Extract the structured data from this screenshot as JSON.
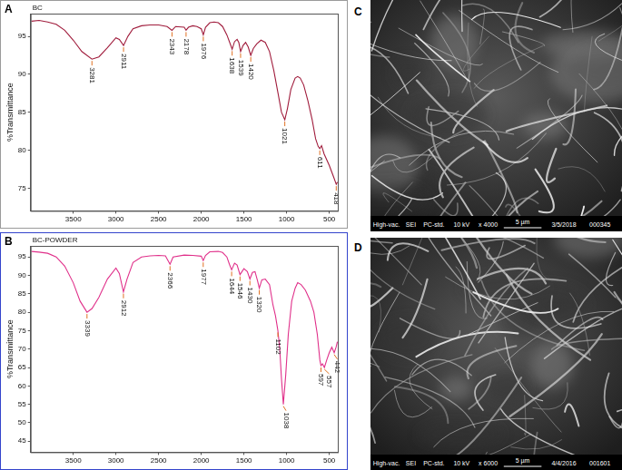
{
  "chart_data": [
    {
      "panel": "A",
      "type": "line",
      "y_label": "%Transmittance",
      "x": [
        3990,
        3900,
        3800,
        3700,
        3600,
        3500,
        3400,
        3281,
        3200,
        3100,
        3000,
        2960,
        2911,
        2860,
        2800,
        2700,
        2600,
        2500,
        2400,
        2343,
        2300,
        2200,
        2178,
        2150,
        2100,
        2050,
        2000,
        1976,
        1950,
        1900,
        1850,
        1800,
        1750,
        1700,
        1660,
        1638,
        1610,
        1580,
        1560,
        1539,
        1510,
        1480,
        1450,
        1420,
        1390,
        1350,
        1300,
        1250,
        1200,
        1150,
        1100,
        1060,
        1021,
        990,
        950,
        900,
        870,
        840,
        800,
        750,
        700,
        660,
        630,
        611,
        590,
        560,
        500,
        450,
        418,
        405
      ],
      "series": [
        {
          "name": "BC",
          "color": "#a01c3c",
          "values": [
            97,
            97.1,
            96.9,
            96.6,
            95.8,
            94.5,
            93,
            92,
            92.3,
            93.5,
            94.8,
            94.6,
            93.8,
            95,
            96,
            96.4,
            96.5,
            96.5,
            96.3,
            95.8,
            96.3,
            96.2,
            95.8,
            96.2,
            96.4,
            96.3,
            96,
            95.2,
            96.2,
            96.8,
            96.9,
            96.8,
            96.3,
            95.2,
            94,
            93.3,
            94.3,
            94.6,
            94.2,
            93,
            93.8,
            94.2,
            93.6,
            92.5,
            93.4,
            94,
            94.5,
            94.2,
            93,
            90.5,
            87.5,
            85,
            84,
            85.5,
            88,
            89.5,
            89.7,
            89.5,
            88.6,
            86.5,
            84,
            81.5,
            80.5,
            80.2,
            80.6,
            79.5,
            78,
            76.5,
            75.5,
            75.8
          ]
        }
      ],
      "annotations": [
        3281,
        2911,
        2343,
        2178,
        1976,
        1638,
        1539,
        1420,
        1021,
        611,
        418
      ],
      "xlim": [
        4000,
        400
      ],
      "xticks": [
        3500,
        3000,
        2500,
        2000,
        1500,
        1000,
        500
      ],
      "ylim": [
        72,
        98
      ],
      "yticks": [
        75,
        80,
        85,
        90,
        95
      ],
      "grid": false,
      "legend": "upper left"
    },
    {
      "panel": "B",
      "type": "line",
      "y_label": "%Transmittance",
      "x": [
        3990,
        3900,
        3800,
        3700,
        3600,
        3500,
        3420,
        3339,
        3280,
        3200,
        3100,
        3000,
        2960,
        2912,
        2870,
        2800,
        2700,
        2600,
        2500,
        2420,
        2366,
        2330,
        2200,
        2100,
        2000,
        1977,
        1950,
        1900,
        1800,
        1750,
        1700,
        1670,
        1644,
        1610,
        1580,
        1546,
        1500,
        1460,
        1430,
        1400,
        1370,
        1340,
        1320,
        1290,
        1250,
        1200,
        1160,
        1130,
        1102,
        1080,
        1060,
        1038,
        1010,
        980,
        940,
        900,
        870,
        830,
        780,
        720,
        680,
        640,
        610,
        597,
        580,
        557,
        530,
        500,
        470,
        442,
        420,
        405
      ],
      "series": [
        {
          "name": "BC-POWDER",
          "color": "#e0308a",
          "values": [
            96.5,
            96.3,
            96,
            95,
            92.5,
            88,
            83,
            80,
            81,
            84,
            89,
            92,
            90.5,
            85.5,
            89,
            93.5,
            95,
            95.3,
            95.4,
            95.3,
            93,
            95,
            95.5,
            95.4,
            95.2,
            94,
            95.4,
            96.4,
            96.5,
            96.2,
            95,
            93,
            91.5,
            93.3,
            92.8,
            90.2,
            91.8,
            91,
            89,
            90.8,
            91,
            88.5,
            86.5,
            88.8,
            89,
            87.5,
            82,
            79,
            75,
            70,
            62,
            55,
            63,
            74,
            83,
            86.5,
            88,
            87.5,
            86,
            83,
            80,
            74,
            67,
            65.5,
            66,
            65,
            67,
            69,
            70.5,
            69,
            70.5,
            72
          ]
        }
      ],
      "annotations": [
        3339,
        2912,
        2366,
        1977,
        1644,
        1546,
        1430,
        1320,
        1102,
        1038,
        597,
        557,
        442
      ],
      "xlim": [
        4000,
        400
      ],
      "xticks": [
        3500,
        3000,
        2500,
        2000,
        1500,
        1000,
        500
      ],
      "ylim": [
        42,
        98
      ],
      "yticks": [
        45,
        50,
        55,
        60,
        65,
        70,
        75,
        80,
        85,
        90,
        95
      ],
      "grid": false,
      "legend": "upper left"
    }
  ],
  "images": [
    {
      "panel": "C",
      "info": [
        "High-vac.",
        "SEI",
        "PC-std.",
        "10 kV",
        "x 4000",
        "3/5/2018",
        "000345"
      ],
      "scale_bar": "5 µm"
    },
    {
      "panel": "D",
      "info": [
        "High-vac.",
        "SEI",
        "PC-std.",
        "10 kV",
        "x 6000",
        "4/4/2016",
        "001601"
      ],
      "scale_bar": "5 µm"
    }
  ]
}
